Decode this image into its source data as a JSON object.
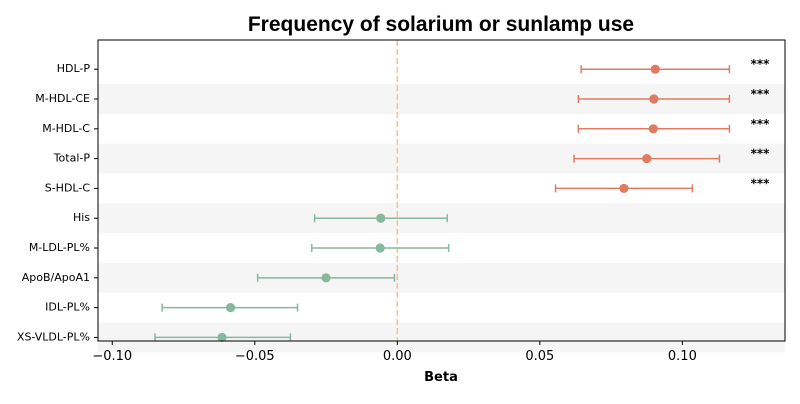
{
  "chart_data": {
    "type": "forest",
    "title": "Frequency of solarium or sunlamp use",
    "xlabel": "Beta",
    "ylabel": "",
    "xlim": [
      -0.105,
      0.136
    ],
    "xticks": [
      -0.1,
      -0.05,
      0.0,
      0.05,
      0.1
    ],
    "xtick_labels": [
      "−0.10",
      "−0.05",
      "0.00",
      "0.05",
      "0.10"
    ],
    "reference_line": 0.0,
    "colors": {
      "positive": "#e07b62",
      "negative": "#87b79c",
      "reference": "#f5c77e",
      "band": "#f5f5f5"
    },
    "rows": [
      {
        "label": "HDL-P",
        "beta": 0.0905,
        "ci_low": 0.0645,
        "ci_high": 0.1165,
        "sig": "***"
      },
      {
        "label": "M-HDL-CE",
        "beta": 0.09,
        "ci_low": 0.0635,
        "ci_high": 0.1165,
        "sig": "***"
      },
      {
        "label": "M-HDL-C",
        "beta": 0.0898,
        "ci_low": 0.0635,
        "ci_high": 0.1165,
        "sig": "***"
      },
      {
        "label": "Total-P",
        "beta": 0.0875,
        "ci_low": 0.062,
        "ci_high": 0.113,
        "sig": "***"
      },
      {
        "label": "S-HDL-C",
        "beta": 0.0795,
        "ci_low": 0.0555,
        "ci_high": 0.1035,
        "sig": "***"
      },
      {
        "label": "His",
        "beta": -0.0058,
        "ci_low": -0.029,
        "ci_high": 0.0175,
        "sig": ""
      },
      {
        "label": "M-LDL-PL%",
        "beta": -0.006,
        "ci_low": -0.03,
        "ci_high": 0.018,
        "sig": ""
      },
      {
        "label": "ApoB/ApoA1",
        "beta": -0.025,
        "ci_low": -0.049,
        "ci_high": -0.001,
        "sig": ""
      },
      {
        "label": "IDL-PL%",
        "beta": -0.0585,
        "ci_low": -0.0825,
        "ci_high": -0.035,
        "sig": ""
      },
      {
        "label": "XS-VLDL-PL%",
        "beta": -0.0615,
        "ci_low": -0.085,
        "ci_high": -0.0375,
        "sig": ""
      }
    ]
  }
}
